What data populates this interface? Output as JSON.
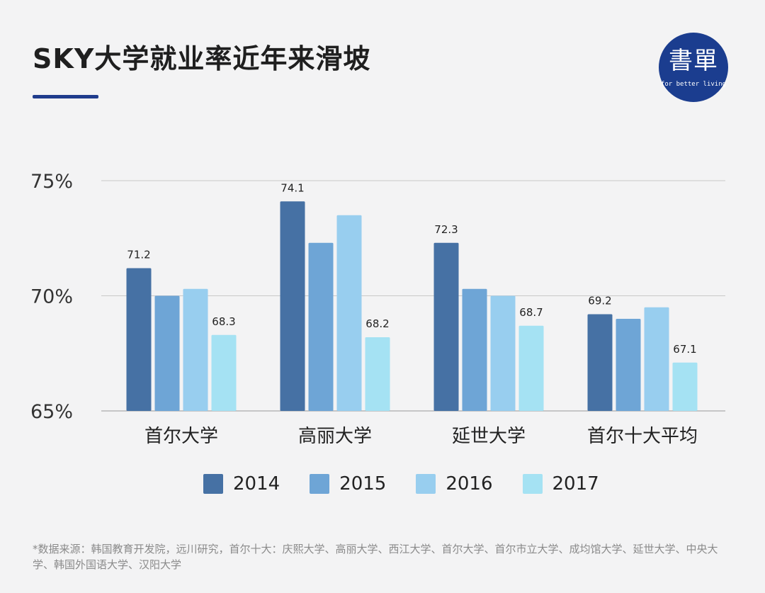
{
  "header": {
    "title": "SKY大学就业率近年来滑坡"
  },
  "logo": {
    "main": "書單",
    "sub": "for better living",
    "color": "#1b3d8f"
  },
  "footnote": "*数据来源：韩国教育开发院，远川研究，首尔十大：庆熙大学、高丽大学、西江大学、首尔大学、首尔市立大学、成均馆大学、延世大学、中央大学、韩国外国语大学、汉阳大学",
  "chart_data": {
    "type": "bar",
    "title": "SKY大学就业率近年来滑坡",
    "xlabel": "",
    "ylabel": "",
    "ylim": [
      65,
      75
    ],
    "yticks": [
      {
        "value": 75,
        "label": "75%"
      },
      {
        "value": 70,
        "label": "70%"
      },
      {
        "value": 65,
        "label": "65%"
      }
    ],
    "grid": true,
    "legend_position": "bottom",
    "categories": [
      "首尔大学",
      "高丽大学",
      "延世大学",
      "首尔十大平均"
    ],
    "series": [
      {
        "name": "2014",
        "color": "#4671a4",
        "values": [
          71.2,
          74.1,
          72.3,
          69.2
        ],
        "labels": [
          "71.2",
          "74.1",
          "72.3",
          "69.2"
        ]
      },
      {
        "name": "2015",
        "color": "#6ea5d6",
        "values": [
          70.0,
          72.3,
          70.3,
          69.0
        ],
        "labels": [
          "",
          "",
          "",
          ""
        ]
      },
      {
        "name": "2016",
        "color": "#98ceef",
        "values": [
          70.3,
          73.5,
          70.0,
          69.5
        ],
        "labels": [
          "",
          "",
          "",
          ""
        ]
      },
      {
        "name": "2017",
        "color": "#a5e2f3",
        "values": [
          68.3,
          68.2,
          68.7,
          67.1
        ],
        "labels": [
          "68.3",
          "68.2",
          "68.7",
          "67.1"
        ]
      }
    ]
  }
}
